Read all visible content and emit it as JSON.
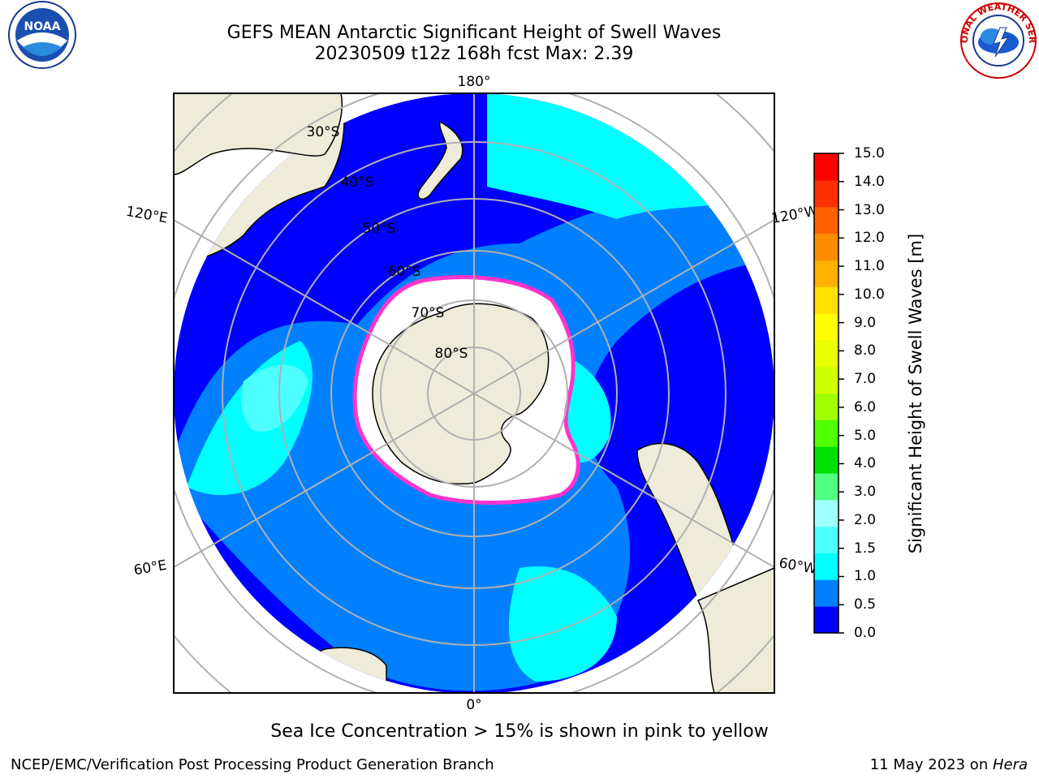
{
  "title": {
    "line1": "GEFS MEAN Antarctic Significant Height of Swell Waves",
    "line2": "20230509 t12z 168h fcst   Max: 2.39"
  },
  "map": {
    "projection": "south polar stereographic",
    "longitude_labels": [
      "180°",
      "120°E",
      "120°W",
      "60°E",
      "60°W",
      "0°"
    ],
    "latitude_labels": [
      "30°S",
      "40°S",
      "50°S",
      "60°S",
      "70°S",
      "80°S"
    ],
    "colors": {
      "land": "#eeecd9",
      "ocean_low": "#0000ff",
      "ocean_mid": "#0080ff",
      "ocean_high": "#00ffff",
      "ocean_highest": "#4dffff",
      "ice_edge": "#ff33cc",
      "grid": "#b0b0b0"
    }
  },
  "colorbar": {
    "label": "Significant Height of Swell Waves [m]",
    "ticks": [
      "15.0",
      "14.0",
      "13.0",
      "12.0",
      "11.0",
      "10.0",
      "9.0",
      "8.0",
      "7.0",
      "6.0",
      "5.0",
      "4.0",
      "3.0",
      "2.0",
      "1.5",
      "1.0",
      "0.5",
      "0.0"
    ],
    "colors": [
      "#0000ff",
      "#0080ff",
      "#00ffff",
      "#4dffff",
      "#a0ffff",
      "#50ff80",
      "#00e000",
      "#50ff00",
      "#a0ff00",
      "#d0ff00",
      "#e8ff00",
      "#ffff00",
      "#ffe000",
      "#ffb000",
      "#ff8c00",
      "#ff6000",
      "#ff3000",
      "#ff0000"
    ]
  },
  "note": "Sea Ice Concentration > 15% is shown in pink to yellow",
  "footer": {
    "left": "NCEP/EMC/Verification Post Processing Product Generation Branch",
    "right_date": "11 May 2023 on ",
    "right_machine": "Hera"
  },
  "logos": {
    "noaa_text": "NOAA",
    "nws_text": "NATIONAL WEATHER SERVICE"
  }
}
